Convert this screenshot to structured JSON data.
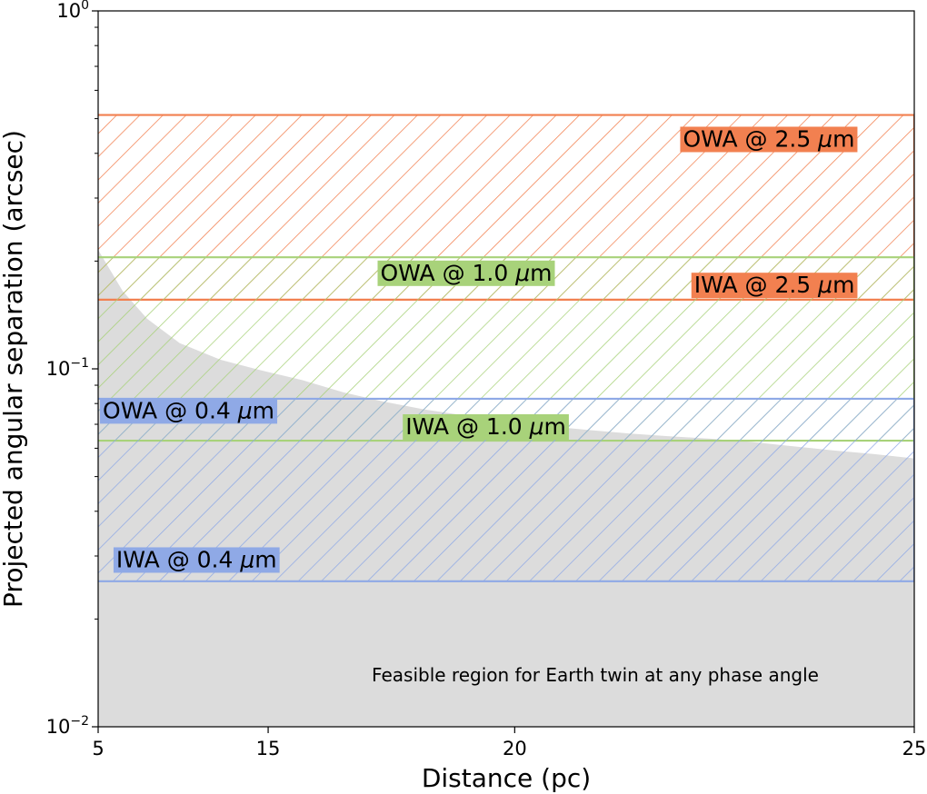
{
  "chart_data": {
    "type": "area",
    "title": "",
    "xlabel": "Distance (pc)",
    "ylabel": "Projected angular separation (arcsec)",
    "x_ticks": [
      {
        "label": "5",
        "pos": 0.0
      },
      {
        "label": "15",
        "pos": 0.2083
      },
      {
        "label": "20",
        "pos": 0.5104
      },
      {
        "label": "25",
        "pos": 1.0
      }
    ],
    "yscale": "log",
    "ylim": [
      0.01,
      1.0
    ],
    "y_ticks": [
      {
        "base": "10",
        "exp": "−2",
        "value": 0.01
      },
      {
        "base": "10",
        "exp": "−1",
        "value": 0.1
      },
      {
        "base": "10",
        "exp": "0",
        "value": 1.0
      }
    ],
    "bands": [
      {
        "name": "2.5 um",
        "color": "#f28050",
        "low": 0.156,
        "high": 0.512,
        "labels": [
          {
            "text": "OWA @ 2.5 ",
            "mu": "μ",
            "unit": "m",
            "value": 0.44,
            "xpos": 0.927,
            "anchor": "end"
          },
          {
            "text": "IWA @ 2.5 ",
            "mu": "μ",
            "unit": "m",
            "value": 0.172,
            "xpos": 0.927,
            "anchor": "end"
          }
        ]
      },
      {
        "name": "1.0 um",
        "color": "#a8d27a",
        "low": 0.063,
        "high": 0.205,
        "labels": [
          {
            "text": "OWA @ 1.0 ",
            "mu": "μ",
            "unit": "m",
            "value": 0.186,
            "xpos": 0.451,
            "anchor": "middle"
          },
          {
            "text": "IWA @ 1.0 ",
            "mu": "μ",
            "unit": "m",
            "value": 0.0692,
            "xpos": 0.475,
            "anchor": "middle"
          }
        ]
      },
      {
        "name": "0.4 um",
        "color": "#8fa9e6",
        "low": 0.0255,
        "high": 0.0825,
        "labels": [
          {
            "text": "OWA @ 0.4 ",
            "mu": "μ",
            "unit": "m",
            "value": 0.0767,
            "xpos": 0.0056,
            "anchor": "start"
          },
          {
            "text": "IWA @ 0.4 ",
            "mu": "μ",
            "unit": "m",
            "value": 0.0294,
            "xpos": 0.0222,
            "anchor": "start"
          }
        ]
      }
    ],
    "feasible_region": {
      "color": "#dcdcdc",
      "upper_boundary": [
        [
          0.0,
          0.215
        ],
        [
          0.03,
          0.165
        ],
        [
          0.06,
          0.138
        ],
        [
          0.1,
          0.118
        ],
        [
          0.15,
          0.106
        ],
        [
          0.2,
          0.099
        ],
        [
          0.25,
          0.093
        ],
        [
          0.3,
          0.086
        ],
        [
          0.35,
          0.081
        ],
        [
          0.4,
          0.077
        ],
        [
          0.45,
          0.074
        ],
        [
          0.5,
          0.0715
        ],
        [
          0.55,
          0.0692
        ],
        [
          0.6,
          0.0675
        ],
        [
          0.65,
          0.066
        ],
        [
          0.7,
          0.0648
        ],
        [
          0.75,
          0.0638
        ],
        [
          0.8,
          0.0625
        ],
        [
          0.85,
          0.0608
        ],
        [
          0.9,
          0.0592
        ],
        [
          0.95,
          0.0578
        ],
        [
          1.0,
          0.0562
        ]
      ],
      "annotation": "Feasible region for Earth twin at any phase angle"
    }
  }
}
